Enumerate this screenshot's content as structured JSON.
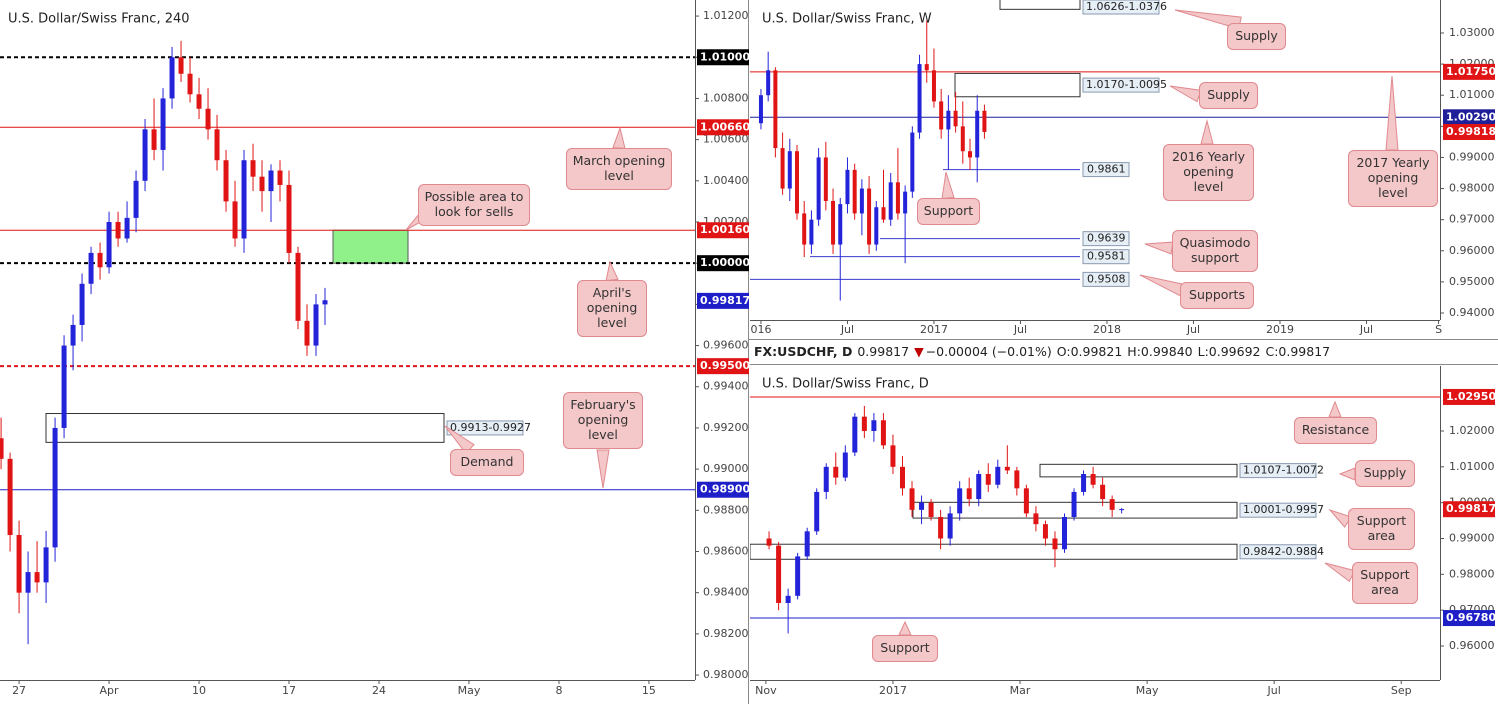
{
  "chart_data": [
    {
      "type": "candlestick",
      "title": "U.S. Dollar/Swiss Franc, 240",
      "x": [
        -1,
        -0.5,
        0,
        0.5,
        1,
        1.5,
        2,
        2.5,
        3,
        3.5,
        4,
        4.5,
        5,
        5.5,
        6,
        6.5,
        7,
        7.5,
        8,
        8.5,
        9,
        9.5,
        10,
        10.5,
        11,
        11.5,
        12,
        12.5,
        13,
        13.5,
        14,
        14.5,
        15,
        15.5,
        16,
        16.5,
        17
      ],
      "open": [
        0.9915,
        0.9905,
        0.9868,
        0.984,
        0.985,
        0.9845,
        0.9862,
        0.992,
        0.996,
        0.997,
        0.999,
        1.0005,
        0.9998,
        1.002,
        1.0012,
        1.0022,
        1.004,
        1.0065,
        1.0055,
        1.008,
        1.01,
        1.0092,
        1.0082,
        1.0075,
        1.0065,
        1.005,
        1.003,
        1.0012,
        1.005,
        1.0042,
        1.0035,
        1.0045,
        1.0038,
        1.0005,
        0.9972,
        0.996,
        0.998
      ],
      "high": [
        0.9925,
        0.9908,
        0.9875,
        0.986,
        0.9865,
        0.987,
        0.9925,
        0.9965,
        0.9975,
        0.9995,
        1.0008,
        1.001,
        1.0025,
        1.0025,
        1.003,
        1.0045,
        1.007,
        1.008,
        1.0085,
        1.0105,
        1.0108,
        1.01,
        1.009,
        1.0085,
        1.0072,
        1.0055,
        1.004,
        1.0055,
        1.0058,
        1.005,
        1.0048,
        1.005,
        1.0045,
        1.0008,
        0.998,
        0.9985,
        0.9988
      ],
      "low": [
        0.99,
        0.986,
        0.983,
        0.9815,
        0.984,
        0.9835,
        0.9855,
        0.9915,
        0.9948,
        0.9962,
        0.9985,
        0.9992,
        0.9995,
        1.0008,
        1.001,
        1.0015,
        1.0035,
        1.005,
        1.0045,
        1.0075,
        1.0088,
        1.0078,
        1.007,
        1.006,
        1.0045,
        1.0025,
        1.0008,
        1.0005,
        1.0035,
        1.0025,
        1.002,
        1.003,
        1.0,
        0.9968,
        0.9955,
        0.9955,
        0.997
      ],
      "close": [
        0.9905,
        0.9868,
        0.984,
        0.985,
        0.9845,
        0.9862,
        0.992,
        0.996,
        0.997,
        0.999,
        1.0005,
        0.9998,
        1.002,
        1.0012,
        1.0022,
        1.004,
        1.0065,
        1.0055,
        1.008,
        1.01,
        1.0092,
        1.0082,
        1.0075,
        1.0065,
        1.005,
        1.003,
        1.0012,
        1.005,
        1.0042,
        1.0035,
        1.0045,
        1.0038,
        1.0005,
        0.9972,
        0.996,
        0.998,
        0.9982
      ],
      "up_color": "#2323d9",
      "down_color": "#e01414",
      "xlim": [
        -1.06,
        37.56
      ],
      "ylim": [
        0.97976,
        1.01278
      ],
      "xticks": [
        {
          "value": 0,
          "label": "27"
        },
        {
          "value": 5,
          "label": "Apr"
        },
        {
          "value": 10,
          "label": "10"
        },
        {
          "value": 15,
          "label": "17"
        },
        {
          "value": 20,
          "label": "24"
        },
        {
          "value": 25,
          "label": "May"
        },
        {
          "value": 30,
          "label": "8"
        },
        {
          "value": 35,
          "label": "15"
        }
      ],
      "yticks": [
        {
          "value": 0.98,
          "label": "0.98000"
        },
        {
          "value": 0.982,
          "label": "0.98200"
        },
        {
          "value": 0.984,
          "label": "0.98400"
        },
        {
          "value": 0.986,
          "label": "0.98600"
        },
        {
          "value": 0.988,
          "label": "0.98800"
        },
        {
          "value": 0.99,
          "label": "0.99000"
        },
        {
          "value": 0.992,
          "label": "0.99200"
        },
        {
          "value": 0.994,
          "label": "0.99400"
        },
        {
          "value": 0.996,
          "label": "0.99600"
        },
        {
          "value": 0.998,
          "label": "0.99800"
        },
        {
          "value": 1.0,
          "label": "1.00000"
        },
        {
          "value": 1.002,
          "label": "1.00200"
        },
        {
          "value": 1.004,
          "label": "1.00400"
        },
        {
          "value": 1.006,
          "label": "1.00600"
        },
        {
          "value": 1.008,
          "label": "1.00800"
        },
        {
          "value": 1.01,
          "label": "1.01000"
        },
        {
          "value": 1.012,
          "label": "1.01200"
        }
      ],
      "levels": [
        {
          "value": 1.01,
          "label": "1.01000",
          "color": "#000000",
          "dashed": true
        },
        {
          "value": 1.0066,
          "label": "1.00660",
          "color": "#e01414",
          "dashed": false
        },
        {
          "value": 1.0016,
          "label": "1.00160",
          "color": "#e01414",
          "dashed": false
        },
        {
          "value": 1.0,
          "label": "1.00000",
          "color": "#000000",
          "dashed": true
        },
        {
          "value": 0.995,
          "label": "0.99500",
          "color": "#e01414",
          "dashed": true
        },
        {
          "value": 0.989,
          "label": "0.98900",
          "color": "#1f1fc8",
          "dashed": false
        }
      ],
      "zones": [
        {
          "low": 0.9913,
          "high": 0.9927,
          "label": "0.9913-0.9927",
          "color": "none"
        },
        {
          "low": 1.0,
          "high": 1.0016,
          "color": "#90f08a"
        }
      ],
      "price_label": {
        "value": 0.99817,
        "label": "0.99817",
        "color": "#1f1fc8"
      },
      "annotations": [
        "March opening level",
        "Possible area to look for sells",
        "April's opening level",
        "February's opening level",
        "Demand"
      ]
    },
    {
      "type": "candlestick",
      "title": "U.S. Dollar/Swiss Franc, W",
      "x": [
        0,
        0.5,
        1,
        1.5,
        2,
        2.5,
        3,
        3.5,
        4,
        4.5,
        5,
        5.5,
        6,
        6.5,
        7,
        7.5,
        8,
        8.5,
        9,
        9.5,
        10,
        10.5,
        11,
        11.5,
        12,
        12.5,
        13,
        13.5,
        14,
        14.5,
        15,
        15.5
      ],
      "open": [
        1.001,
        1.01,
        1.018,
        0.993,
        0.98,
        0.992,
        0.972,
        0.962,
        0.97,
        0.99,
        0.976,
        0.962,
        0.975,
        0.986,
        0.972,
        0.98,
        0.962,
        0.974,
        0.97,
        0.982,
        0.972,
        0.979,
        0.998,
        1.02,
        1.018,
        1.008,
        0.999,
        1.005,
        1.0,
        0.992,
        0.99,
        1.005
      ],
      "high": [
        1.012,
        1.024,
        1.019,
        0.998,
        0.996,
        0.994,
        0.976,
        0.973,
        0.993,
        0.995,
        0.98,
        0.977,
        0.99,
        0.988,
        0.983,
        0.984,
        0.976,
        0.986,
        0.985,
        0.993,
        0.981,
        1.0,
        1.023,
        1.034,
        1.025,
        1.012,
        1.01,
        1.011,
        1.008,
        0.996,
        1.01,
        1.007
      ],
      "low": [
        0.999,
        1.008,
        0.99,
        0.978,
        0.976,
        0.97,
        0.958,
        0.959,
        0.968,
        0.973,
        0.959,
        0.944,
        0.972,
        0.97,
        0.965,
        0.959,
        0.96,
        0.969,
        0.968,
        0.97,
        0.956,
        0.977,
        0.996,
        1.014,
        1.006,
        0.996,
        0.986,
        0.998,
        0.988,
        0.986,
        0.982,
        0.996
      ],
      "close": [
        1.01,
        1.018,
        0.993,
        0.98,
        0.992,
        0.972,
        0.962,
        0.97,
        0.99,
        0.976,
        0.962,
        0.975,
        0.986,
        0.972,
        0.98,
        0.962,
        0.974,
        0.97,
        0.982,
        0.972,
        0.979,
        0.998,
        1.02,
        1.018,
        1.008,
        0.999,
        1.005,
        1.0,
        0.992,
        0.99,
        1.005,
        0.9982
      ],
      "up_color": "#2323d9",
      "down_color": "#e01414",
      "xlim": [
        -0.76,
        47.1
      ],
      "ylim": [
        0.93775,
        1.0406
      ],
      "xticks": [
        {
          "value": 0,
          "label": "016"
        },
        {
          "value": 6,
          "label": "Jul"
        },
        {
          "value": 12,
          "label": "2017"
        },
        {
          "value": 18,
          "label": "Jul"
        },
        {
          "value": 24,
          "label": "2018"
        },
        {
          "value": 30,
          "label": "Jul"
        },
        {
          "value": 36,
          "label": "2019"
        },
        {
          "value": 42,
          "label": "Jul"
        },
        {
          "value": 47,
          "label": "S"
        }
      ],
      "yticks": [
        {
          "value": 0.94,
          "label": "0.94000"
        },
        {
          "value": 0.95,
          "label": "0.95000"
        },
        {
          "value": 0.96,
          "label": "0.96000"
        },
        {
          "value": 0.97,
          "label": "0.97000"
        },
        {
          "value": 0.98,
          "label": "0.98000"
        },
        {
          "value": 0.99,
          "label": "0.99000"
        },
        {
          "value": 1.0,
          "label": "1.00000"
        },
        {
          "value": 1.01,
          "label": "1.01000"
        },
        {
          "value": 1.02,
          "label": "1.02000"
        },
        {
          "value": 1.03,
          "label": "1.03000"
        }
      ],
      "levels": [
        {
          "value": 1.0175,
          "label": "1.01750",
          "color": "#e01414",
          "dashed": false
        },
        {
          "value": 1.0029,
          "label": "1.00290",
          "color": "#1f1f9a",
          "dashed": false
        }
      ],
      "lines": [
        {
          "value": 0.9861,
          "label": "0.9861",
          "color": "#3a3ad0"
        },
        {
          "value": 0.9639,
          "label": "0.9639",
          "color": "#3a3ad0"
        },
        {
          "value": 0.9581,
          "label": "0.9581",
          "color": "#3a3ad0"
        },
        {
          "value": 0.9508,
          "label": "0.9508",
          "color": "#3a3ad0"
        }
      ],
      "zones": [
        {
          "low": 1.0376,
          "high": 1.0626,
          "label": "1.0626-1.0376",
          "color": "none"
        },
        {
          "low": 1.0095,
          "high": 1.017,
          "label": "1.0170-1.0095",
          "color": "none"
        }
      ],
      "price_label": {
        "value": 0.99818,
        "label": "0.99818",
        "color": "#e01414"
      },
      "annotations": [
        "Supply",
        "Supply",
        "2016 Yearly opening level",
        "2017 Yearly opening level",
        "Support",
        "Quasimodo support",
        "Supports"
      ]
    },
    {
      "type": "candlestick",
      "title": "U.S. Dollar/Swiss Franc, D",
      "x": [
        -1.95,
        -1.8,
        -1.65,
        -1.5,
        -1.35,
        -1.2,
        -1.05,
        -0.9,
        -0.75,
        -0.6,
        -0.45,
        -0.3,
        -0.15,
        0,
        0.15,
        0.3,
        0.45,
        0.6,
        0.75,
        0.9,
        1.05,
        1.2,
        1.35,
        1.5,
        1.65,
        1.8,
        1.95,
        2.1,
        2.25,
        2.4,
        2.55,
        2.7,
        2.85,
        3.0,
        3.15,
        3.3,
        3.45,
        3.6
      ],
      "open": [
        0.99,
        0.988,
        0.972,
        0.974,
        0.985,
        0.992,
        1.003,
        1.01,
        1.007,
        1.014,
        1.024,
        1.02,
        1.023,
        1.016,
        1.01,
        1.004,
        0.998,
        1.0,
        0.996,
        0.99,
        0.997,
        1.004,
        1.001,
        1.008,
        1.005,
        1.01,
        1.009,
        1.004,
        0.997,
        0.994,
        0.99,
        0.987,
        0.996,
        1.003,
        1.008,
        1.005,
        1.001,
        0.998
      ],
      "high": [
        0.992,
        0.989,
        0.976,
        0.986,
        0.993,
        1.004,
        1.011,
        1.014,
        1.016,
        1.025,
        1.027,
        1.025,
        1.025,
        1.019,
        1.013,
        1.006,
        1.002,
        1.001,
        0.998,
        0.999,
        1.006,
        1.007,
        1.009,
        1.011,
        1.012,
        1.016,
        1.01,
        1.005,
        0.999,
        0.995,
        0.992,
        0.997,
        1.004,
        1.009,
        1.01,
        1.007,
        1.002,
        0.9985
      ],
      "low": [
        0.987,
        0.97,
        0.9635,
        0.973,
        0.984,
        0.991,
        1.001,
        1.005,
        1.006,
        1.013,
        1.018,
        1.017,
        1.015,
        1.008,
        1.002,
        0.996,
        0.994,
        0.995,
        0.987,
        0.988,
        0.995,
        0.999,
        0.999,
        1.003,
        1.004,
        1.008,
        1.002,
        0.996,
        0.992,
        0.988,
        0.982,
        0.986,
        0.995,
        1.002,
        1.004,
        0.999,
        0.996,
        0.997
      ],
      "close": [
        0.988,
        0.972,
        0.974,
        0.985,
        0.992,
        1.003,
        1.01,
        1.007,
        1.014,
        1.024,
        1.02,
        1.023,
        1.016,
        1.01,
        1.004,
        0.998,
        1.0,
        0.996,
        0.99,
        0.997,
        1.004,
        1.001,
        1.008,
        1.005,
        1.01,
        1.009,
        1.004,
        0.997,
        0.994,
        0.99,
        0.987,
        0.996,
        1.003,
        1.008,
        1.005,
        1.001,
        0.998,
        0.9982
      ],
      "up_color": "#2323d9",
      "down_color": "#e01414",
      "xlim": [
        -2.25,
        8.61
      ],
      "ylim": [
        0.95051,
        1.03814
      ],
      "xticks": [
        {
          "value": -2,
          "label": "Nov"
        },
        {
          "value": 0,
          "label": "2017"
        },
        {
          "value": 2,
          "label": "Mar"
        },
        {
          "value": 4,
          "label": "May"
        },
        {
          "value": 6,
          "label": "Jul"
        },
        {
          "value": 8,
          "label": "Sep"
        }
      ],
      "yticks": [
        {
          "value": 0.96,
          "label": "0.96000"
        },
        {
          "value": 0.97,
          "label": "0.97000"
        },
        {
          "value": 0.98,
          "label": "0.98000"
        },
        {
          "value": 0.99,
          "label": "0.99000"
        },
        {
          "value": 1.0,
          "label": "1.00000"
        },
        {
          "value": 1.01,
          "label": "1.01000"
        },
        {
          "value": 1.02,
          "label": "1.02000"
        }
      ],
      "levels": [
        {
          "value": 1.0295,
          "label": "1.02950",
          "color": "#e01414",
          "dashed": false
        },
        {
          "value": 0.9678,
          "label": "0.96780",
          "color": "#1f1fc8",
          "dashed": false
        }
      ],
      "zones": [
        {
          "low": 1.0072,
          "high": 1.0107,
          "label": "1.0107-1.0072",
          "color": "none"
        },
        {
          "low": 0.9957,
          "high": 1.0001,
          "label": "1.0001-0.9957",
          "color": "none"
        },
        {
          "low": 0.9842,
          "high": 0.9884,
          "label": "0.9842-0.9884",
          "color": "none"
        }
      ],
      "price_label": {
        "value": 0.99817,
        "label": "0.99817",
        "color": "#e01414"
      },
      "annotations": [
        "Resistance",
        "Supply",
        "Support area",
        "Support area",
        "Support"
      ]
    }
  ],
  "info_bar": {
    "symbol": "FX:USDCHF, D",
    "price": "0.99817",
    "arrow": "▼",
    "change": "−0.00004 (−0.01%)",
    "open": "O:0.99821",
    "high": "H:0.99840",
    "low": "L:0.99692",
    "close": "C:0.99817"
  }
}
